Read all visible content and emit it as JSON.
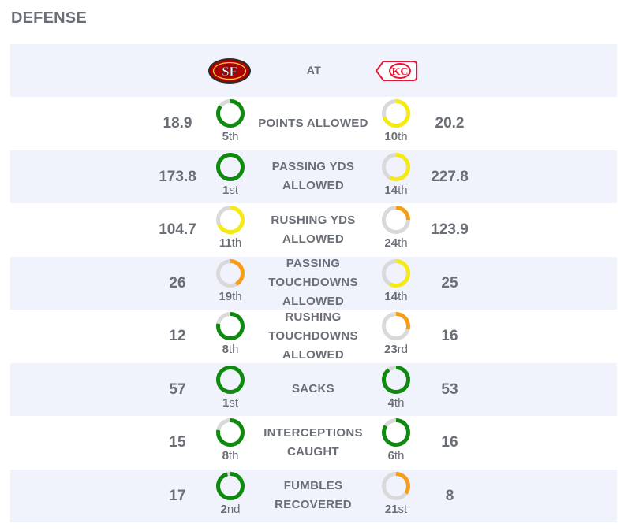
{
  "section_title": "DEFENSE",
  "header": {
    "at_label": "AT",
    "away_team": {
      "logo": "SF-logo"
    },
    "home_team": {
      "logo": "KC-logo"
    }
  },
  "colors": {
    "row_alt": "#f0f2fc",
    "ring_track": "#d9d9d9",
    "tier_good": "#0e8a0e",
    "tier_mid": "#f5ea12",
    "tier_low": "#f59d17",
    "sf_red": "#aa0000",
    "kc_red": "#e31837"
  },
  "rows": [
    {
      "label": "POINTS ALLOWED",
      "left": {
        "value": "18.9",
        "rank": "5",
        "suffix": "th",
        "tier": "good",
        "fill": 0.85
      },
      "right": {
        "value": "20.2",
        "rank": "10",
        "suffix": "th",
        "tier": "mid",
        "fill": 0.7
      }
    },
    {
      "label": "PASSING YDS ALLOWED",
      "left": {
        "value": "173.8",
        "rank": "1",
        "suffix": "st",
        "tier": "good",
        "fill": 1.0
      },
      "right": {
        "value": "227.8",
        "rank": "14",
        "suffix": "th",
        "tier": "mid",
        "fill": 0.58
      }
    },
    {
      "label": "RUSHING YDS ALLOWED",
      "left": {
        "value": "104.7",
        "rank": "11",
        "suffix": "th",
        "tier": "mid",
        "fill": 0.68
      },
      "right": {
        "value": "123.9",
        "rank": "24",
        "suffix": "th",
        "tier": "low",
        "fill": 0.25
      }
    },
    {
      "label": "PASSING TOUCHDOWNS ALLOWED",
      "left": {
        "value": "26",
        "rank": "19",
        "suffix": "th",
        "tier": "low",
        "fill": 0.42
      },
      "right": {
        "value": "25",
        "rank": "14",
        "suffix": "th",
        "tier": "mid",
        "fill": 0.58
      }
    },
    {
      "label": "RUSHING TOUCHDOWNS ALLOWED",
      "left": {
        "value": "12",
        "rank": "8",
        "suffix": "th",
        "tier": "good",
        "fill": 0.78
      },
      "right": {
        "value": "16",
        "rank": "23",
        "suffix": "rd",
        "tier": "low",
        "fill": 0.29
      }
    },
    {
      "label": "SACKS",
      "left": {
        "value": "57",
        "rank": "1",
        "suffix": "st",
        "tier": "good",
        "fill": 1.0
      },
      "right": {
        "value": "53",
        "rank": "4",
        "suffix": "th",
        "tier": "good",
        "fill": 0.9
      }
    },
    {
      "label": "INTERCEPTIONS CAUGHT",
      "left": {
        "value": "15",
        "rank": "8",
        "suffix": "th",
        "tier": "good",
        "fill": 0.78
      },
      "right": {
        "value": "16",
        "rank": "6",
        "suffix": "th",
        "tier": "good",
        "fill": 0.84
      }
    },
    {
      "label": "FUMBLES RECOVERED",
      "left": {
        "value": "17",
        "rank": "2",
        "suffix": "nd",
        "tier": "good",
        "fill": 0.96
      },
      "right": {
        "value": "8",
        "rank": "21",
        "suffix": "st",
        "tier": "low",
        "fill": 0.35
      }
    }
  ]
}
